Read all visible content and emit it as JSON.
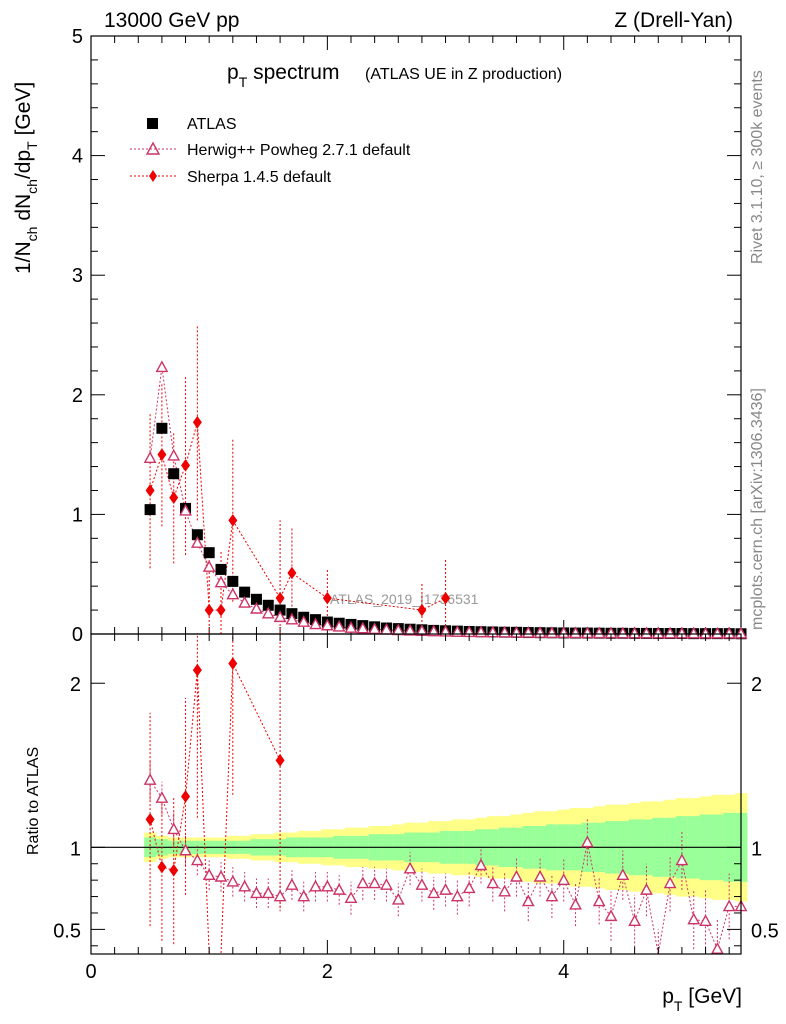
{
  "header": {
    "left": "13000 GeV pp",
    "right": "Z (Drell-Yan)"
  },
  "side_labels": {
    "rivet": "Rivet 3.1.10, ≥ 300k events",
    "mcplots": "mcplots.cern.ch [arXiv:1306.3436]"
  },
  "watermark": "ATLAS_2019_I1736531",
  "colors": {
    "data": "#000000",
    "herwig": "#cc3366",
    "sherpa": "#ee0000",
    "band_inner": "#99ff99",
    "band_outer": "#ffff88"
  },
  "chart_data": [
    {
      "id": "main",
      "type": "scatter",
      "title_main": "p",
      "title_sub": "T",
      "title_rest": " spectrum",
      "title_note": "(ATLAS UE in Z production)",
      "ylabel": "1/N_ch dN_ch/dp_T [GeV]",
      "xlim": [
        0,
        5.5
      ],
      "ylim": [
        0,
        5
      ],
      "yticks": [
        0,
        1,
        2,
        3,
        4,
        5
      ],
      "legend_position": "top-left",
      "series": [
        {
          "name": "ATLAS",
          "marker": "square",
          "x": [
            0.5,
            0.6,
            0.7,
            0.8,
            0.9,
            1.0,
            1.1,
            1.2,
            1.3,
            1.4,
            1.5,
            1.6,
            1.7,
            1.8,
            1.9,
            2.0,
            2.1,
            2.2,
            2.3,
            2.4,
            2.5,
            2.6,
            2.7,
            2.8,
            2.9,
            3.0,
            3.1,
            3.2,
            3.3,
            3.4,
            3.5,
            3.6,
            3.7,
            3.8,
            3.9,
            4.0,
            4.1,
            4.2,
            4.3,
            4.4,
            4.5,
            4.6,
            4.7,
            4.8,
            4.9,
            5.0,
            5.1,
            5.2,
            5.3,
            5.4,
            5.5
          ],
          "y": [
            1.04,
            1.72,
            1.34,
            1.05,
            0.83,
            0.68,
            0.54,
            0.44,
            0.35,
            0.29,
            0.24,
            0.2,
            0.17,
            0.14,
            0.12,
            0.1,
            0.09,
            0.08,
            0.07,
            0.06,
            0.05,
            0.045,
            0.04,
            0.035,
            0.03,
            0.027,
            0.024,
            0.021,
            0.019,
            0.017,
            0.015,
            0.014,
            0.012,
            0.011,
            0.01,
            0.009,
            0.008,
            0.008,
            0.007,
            0.006,
            0.006,
            0.005,
            0.005,
            0.004,
            0.004,
            0.004,
            0.003,
            0.003,
            0.003,
            0.003,
            0.002
          ]
        },
        {
          "name": "Herwig++ Powheg 2.7.1 default",
          "marker": "triangle",
          "x": [
            0.5,
            0.6,
            0.7,
            0.8,
            0.9,
            1.0,
            1.1,
            1.2,
            1.3,
            1.4,
            1.5,
            1.6,
            1.7,
            1.8,
            1.9,
            2.0,
            2.1,
            2.2,
            2.3,
            2.4,
            2.5,
            2.6,
            2.7,
            2.8,
            2.9,
            3.0,
            3.1,
            3.2,
            3.3,
            3.4,
            3.5,
            3.6,
            3.7,
            3.8,
            3.9,
            4.0,
            4.1,
            4.2,
            4.3,
            4.4,
            4.5,
            4.6,
            4.7,
            4.8,
            4.9,
            5.0,
            5.1,
            5.2,
            5.3,
            5.4,
            5.5
          ],
          "y": [
            1.47,
            2.23,
            1.49,
            1.03,
            0.76,
            0.56,
            0.43,
            0.33,
            0.26,
            0.21,
            0.17,
            0.14,
            0.12,
            0.1,
            0.08,
            0.07,
            0.06,
            0.05,
            0.045,
            0.04,
            0.035,
            0.03,
            0.027,
            0.024,
            0.021,
            0.018,
            0.016,
            0.014,
            0.013,
            0.012,
            0.011,
            0.01,
            0.009,
            0.008,
            0.007,
            0.007,
            0.006,
            0.006,
            0.005,
            0.005,
            0.004,
            0.004,
            0.004,
            0.003,
            0.003,
            0.003,
            0.003,
            0.002,
            0.002,
            0.002,
            0.002
          ]
        },
        {
          "name": "Sherpa 1.4.5 default",
          "marker": "diamond",
          "x": [
            0.5,
            0.6,
            0.7,
            0.8,
            0.9,
            1.0,
            1.1,
            1.2,
            1.6,
            1.7,
            2.0,
            2.8,
            3.0
          ],
          "y": [
            1.2,
            1.5,
            1.14,
            1.41,
            1.77,
            0.2,
            0.2,
            0.95,
            0.3,
            0.51,
            0.3,
            0.2,
            0.3
          ],
          "err": [
            0.65,
            0.6,
            0.55,
            0.75,
            0.82,
            0.5,
            0.5,
            0.68,
            0.65,
            0.38,
            0.25,
            0.22,
            0.32
          ]
        }
      ]
    },
    {
      "id": "ratio",
      "type": "scatter",
      "ylabel": "Ratio to ATLAS",
      "xlabel_main": "p",
      "xlabel_sub": "T",
      "xlabel_rest": " [GeV]",
      "xlim": [
        0,
        5.5
      ],
      "ylim": [
        0.35,
        2.3
      ],
      "yticks": [
        0.5,
        1,
        2
      ],
      "xticks": [
        0,
        2,
        4
      ],
      "band_x": [
        0.45,
        0.55,
        0.65,
        0.75,
        0.85,
        0.95,
        1.05,
        1.15,
        1.25,
        1.35,
        1.45,
        1.55,
        1.65,
        1.75,
        1.85,
        1.95,
        2.05,
        2.15,
        2.25,
        2.35,
        2.45,
        2.55,
        2.65,
        2.75,
        2.85,
        2.95,
        3.05,
        3.15,
        3.25,
        3.35,
        3.45,
        3.55,
        3.65,
        3.75,
        3.85,
        3.95,
        4.05,
        4.15,
        4.25,
        4.35,
        4.45,
        4.55,
        4.65,
        4.75,
        4.85,
        4.95,
        5.05,
        5.15,
        5.25,
        5.35,
        5.45,
        5.55
      ],
      "band_inner": [
        0.06,
        0.05,
        0.04,
        0.04,
        0.04,
        0.04,
        0.04,
        0.04,
        0.04,
        0.05,
        0.05,
        0.05,
        0.06,
        0.06,
        0.06,
        0.06,
        0.07,
        0.07,
        0.07,
        0.08,
        0.08,
        0.08,
        0.09,
        0.09,
        0.09,
        0.1,
        0.1,
        0.1,
        0.11,
        0.11,
        0.12,
        0.12,
        0.13,
        0.13,
        0.14,
        0.14,
        0.14,
        0.15,
        0.15,
        0.16,
        0.16,
        0.17,
        0.17,
        0.18,
        0.18,
        0.19,
        0.19,
        0.2,
        0.2,
        0.21,
        0.21
      ],
      "band_outer": [
        0.09,
        0.07,
        0.06,
        0.06,
        0.06,
        0.06,
        0.06,
        0.07,
        0.07,
        0.08,
        0.08,
        0.09,
        0.09,
        0.1,
        0.1,
        0.11,
        0.11,
        0.12,
        0.12,
        0.13,
        0.13,
        0.14,
        0.15,
        0.15,
        0.16,
        0.16,
        0.17,
        0.17,
        0.18,
        0.19,
        0.19,
        0.2,
        0.21,
        0.22,
        0.22,
        0.23,
        0.24,
        0.24,
        0.25,
        0.26,
        0.26,
        0.27,
        0.28,
        0.28,
        0.29,
        0.3,
        0.3,
        0.31,
        0.32,
        0.32,
        0.33
      ],
      "series": [
        {
          "name": "Herwig++ Powheg 2.7.1 default",
          "marker": "triangle",
          "x": [
            0.5,
            0.6,
            0.7,
            0.8,
            0.9,
            1.0,
            1.1,
            1.2,
            1.3,
            1.4,
            1.5,
            1.6,
            1.7,
            1.8,
            1.9,
            2.0,
            2.1,
            2.2,
            2.3,
            2.4,
            2.5,
            2.6,
            2.7,
            2.8,
            2.9,
            3.0,
            3.1,
            3.2,
            3.3,
            3.4,
            3.5,
            3.6,
            3.7,
            3.8,
            3.9,
            4.0,
            4.1,
            4.2,
            4.3,
            4.4,
            4.5,
            4.6,
            4.7,
            4.8,
            4.9,
            5.0,
            5.1,
            5.2,
            5.3,
            5.4,
            5.5
          ],
          "y": [
            1.41,
            1.3,
            1.11,
            0.98,
            0.92,
            0.83,
            0.82,
            0.79,
            0.76,
            0.72,
            0.72,
            0.7,
            0.77,
            0.7,
            0.76,
            0.76,
            0.74,
            0.69,
            0.78,
            0.78,
            0.77,
            0.68,
            0.87,
            0.77,
            0.72,
            0.74,
            0.7,
            0.75,
            0.89,
            0.78,
            0.73,
            0.82,
            0.67,
            0.82,
            0.7,
            0.8,
            0.65,
            1.03,
            0.67,
            0.58,
            0.83,
            0.55,
            0.74,
            0.33,
            0.78,
            0.92,
            0.56,
            0.55,
            0.38,
            0.64,
            0.64
          ],
          "err": [
            0.12,
            0.1,
            0.1,
            0.09,
            0.09,
            0.09,
            0.09,
            0.09,
            0.09,
            0.09,
            0.09,
            0.09,
            0.09,
            0.09,
            0.09,
            0.09,
            0.09,
            0.1,
            0.1,
            0.1,
            0.1,
            0.1,
            0.1,
            0.1,
            0.1,
            0.1,
            0.11,
            0.11,
            0.11,
            0.11,
            0.12,
            0.12,
            0.12,
            0.12,
            0.13,
            0.13,
            0.13,
            0.14,
            0.14,
            0.15,
            0.15,
            0.16,
            0.16,
            0.17,
            0.17,
            0.18,
            0.18,
            0.19,
            0.19,
            0.2,
            0.2
          ]
        },
        {
          "name": "Sherpa 1.4.5 default",
          "marker": "diamond",
          "x": [
            0.5,
            0.6,
            0.7,
            0.8,
            0.9,
            1.2,
            1.6
          ],
          "y": [
            1.17,
            0.88,
            0.86,
            1.31,
            2.08,
            2.12,
            1.53
          ],
          "err": [
            0.65,
            0.45,
            0.45,
            0.6,
            0.9,
            0.8,
            0.9
          ]
        }
      ]
    }
  ]
}
